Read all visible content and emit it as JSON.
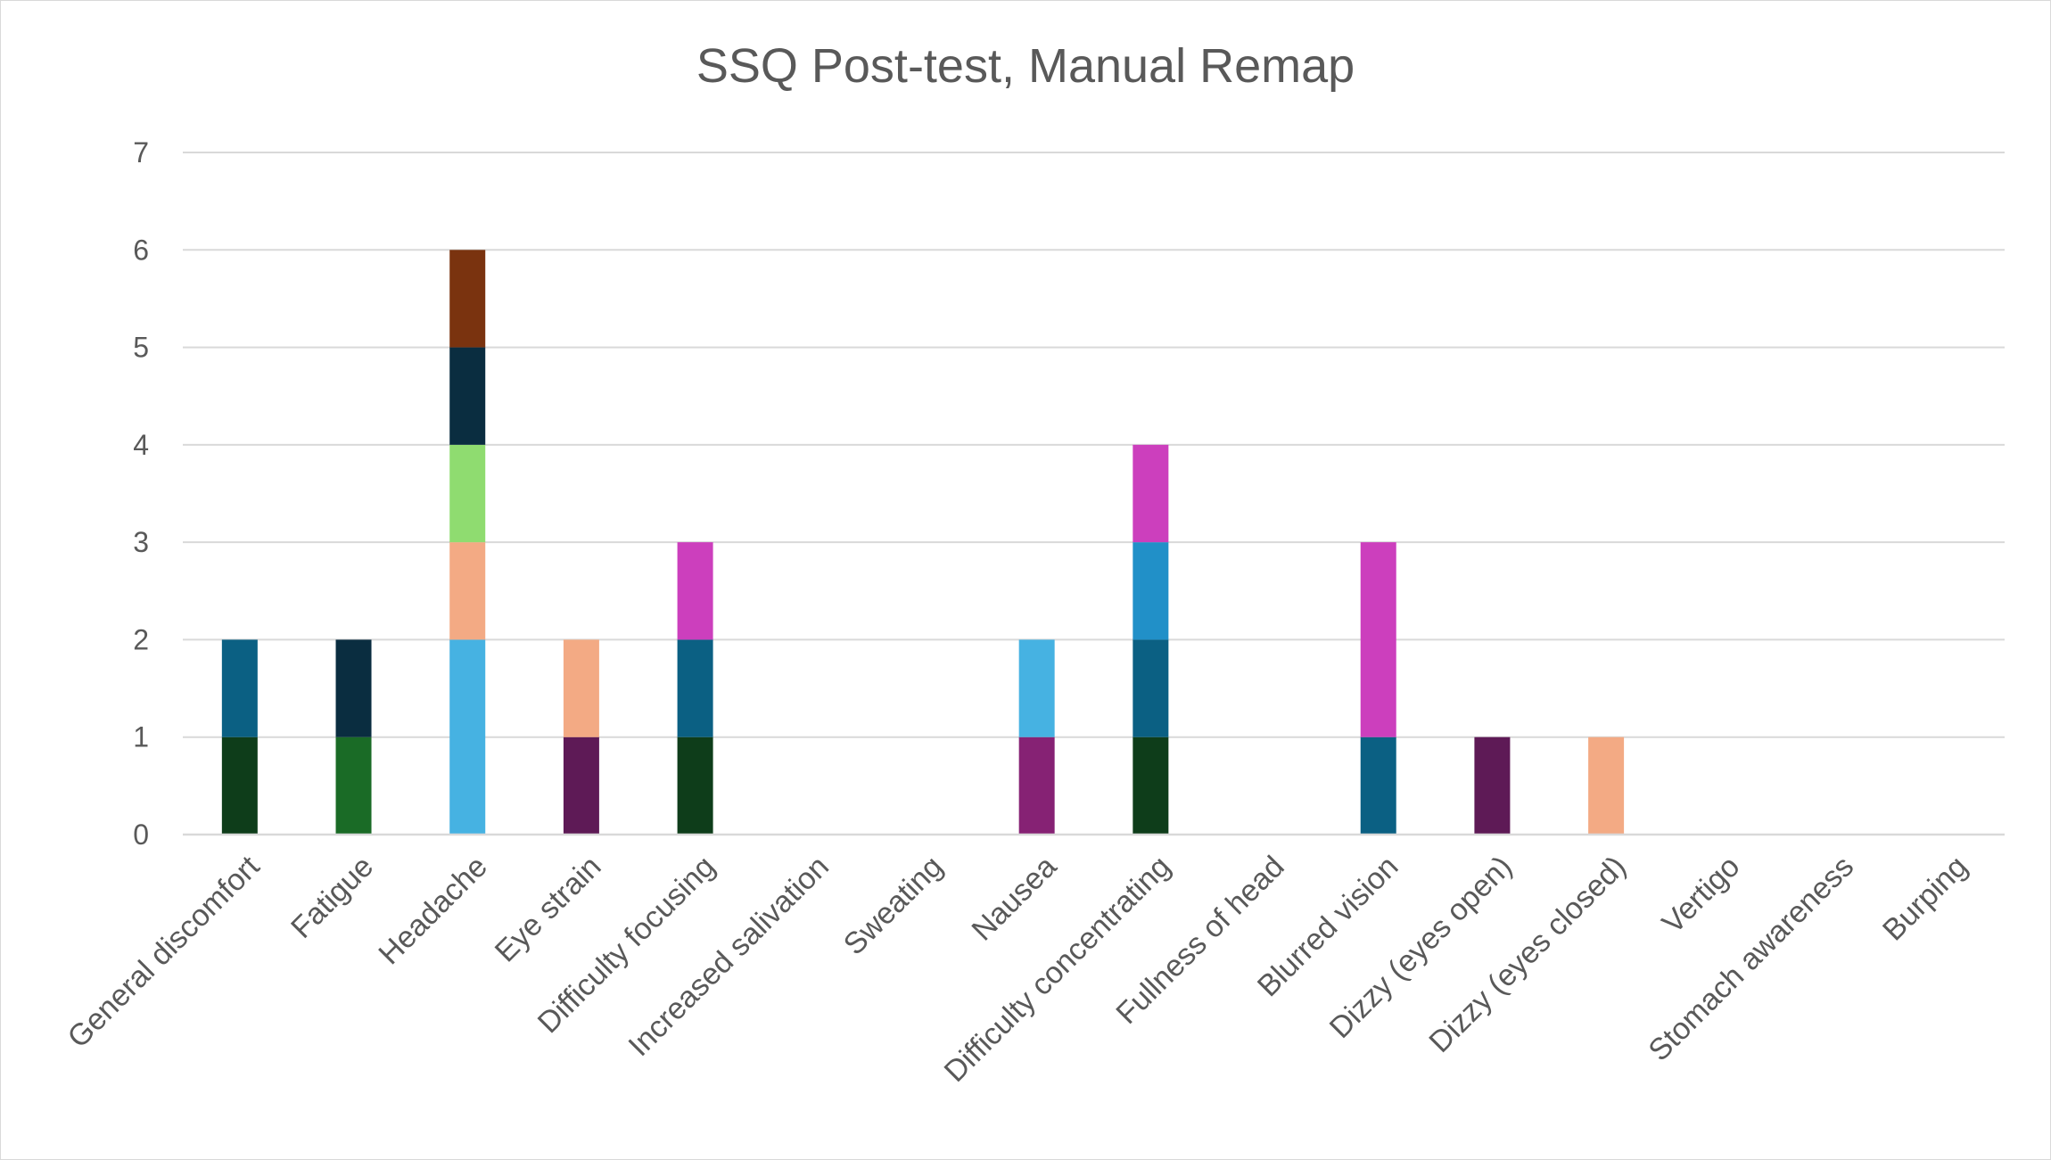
{
  "chart_data": {
    "type": "bar",
    "stacked": true,
    "title": "SSQ Post-test, Manual Remap",
    "xlabel": "",
    "ylabel": "",
    "ylim": [
      0,
      7
    ],
    "yticks": [
      "0",
      "1",
      "2",
      "3",
      "4",
      "5",
      "6",
      "7"
    ],
    "grid": true,
    "legend": "none",
    "categories": [
      "General discomfort",
      "Fatigue",
      "Headache",
      "Eye strain",
      "Difficulty focusing",
      "Increased salivation",
      "Sweating",
      "Nausea",
      "Difficulty concentrating",
      "Fullness of head",
      "Blurred vision",
      "Dizzy (eyes open)",
      "Dizzy (eyes closed)",
      "Vertigo",
      "Stomach awareness",
      "Burping"
    ],
    "stacks": [
      [
        {
          "value": 1,
          "color": "#0e3d1a"
        },
        {
          "value": 1,
          "color": "#0b6083"
        }
      ],
      [
        {
          "value": 1,
          "color": "#1a6b26"
        },
        {
          "value": 1,
          "color": "#0a2d40"
        }
      ],
      [
        {
          "value": 2,
          "color": "#46b2e2"
        },
        {
          "value": 1,
          "color": "#f3aa84"
        },
        {
          "value": 1,
          "color": "#8fdc70"
        },
        {
          "value": 1,
          "color": "#0a2d40"
        },
        {
          "value": 1,
          "color": "#7a330f"
        }
      ],
      [
        {
          "value": 1,
          "color": "#5e1a56"
        },
        {
          "value": 1,
          "color": "#f3aa84"
        }
      ],
      [
        {
          "value": 1,
          "color": "#0e3d1a"
        },
        {
          "value": 1,
          "color": "#0b6083"
        },
        {
          "value": 1,
          "color": "#cc3fbd"
        }
      ],
      [],
      [],
      [
        {
          "value": 1,
          "color": "#862274"
        },
        {
          "value": 1,
          "color": "#46b2e2"
        }
      ],
      [
        {
          "value": 1,
          "color": "#0e3d1a"
        },
        {
          "value": 1,
          "color": "#0b6083"
        },
        {
          "value": 1,
          "color": "#2190c8"
        },
        {
          "value": 1,
          "color": "#cc3fbd"
        }
      ],
      [],
      [
        {
          "value": 1,
          "color": "#0b6083"
        },
        {
          "value": 2,
          "color": "#cc3fbd"
        }
      ],
      [
        {
          "value": 1,
          "color": "#5e1a56"
        }
      ],
      [
        {
          "value": 1,
          "color": "#f3aa84"
        }
      ],
      [],
      [],
      []
    ]
  }
}
